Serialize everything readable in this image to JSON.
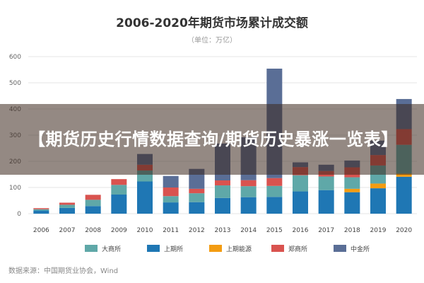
{
  "chart_data": {
    "type": "bar",
    "stacked": true,
    "title": "2006-2020年期货市场累计成交额",
    "subtitle": "（单位：万亿）",
    "ylim": [
      0,
      600
    ],
    "yticks": [
      0,
      100,
      200,
      300,
      400,
      500,
      600
    ],
    "categories": [
      "2006",
      "2007",
      "2008",
      "2009",
      "2010",
      "2011",
      "2012",
      "2013",
      "2014",
      "2015",
      "2016",
      "2017",
      "2018",
      "2019",
      "2020"
    ],
    "series": [
      {
        "name": "上期所",
        "color": "#1f77b4",
        "values": [
          12,
          22,
          29,
          73,
          123,
          43,
          44,
          60,
          63,
          64,
          85,
          90,
          82,
          97,
          141
        ]
      },
      {
        "name": "上期能源",
        "color": "#f39c12",
        "values": [
          0,
          0,
          0,
          0,
          0,
          0,
          0,
          0,
          0,
          0,
          0,
          0,
          13,
          18,
          12
        ]
      },
      {
        "name": "大商所",
        "color": "#5fa8a8",
        "values": [
          5,
          12,
          24,
          37,
          42,
          24,
          34,
          48,
          42,
          42,
          62,
          52,
          44,
          69,
          110
        ]
      },
      {
        "name": "郑商所",
        "color": "#d9534f",
        "values": [
          4,
          8,
          19,
          22,
          22,
          33,
          17,
          19,
          23,
          30,
          31,
          21,
          38,
          40,
          60
        ]
      },
      {
        "name": "中金所",
        "color": "#5a6e96",
        "values": [
          0,
          0,
          0,
          0,
          41,
          44,
          76,
          141,
          164,
          418,
          18,
          24,
          26,
          55,
          115
        ]
      }
    ],
    "legend_order": [
      "大商所",
      "上期所",
      "上期能源",
      "郑商所",
      "中金所"
    ],
    "legend_position": "bottom",
    "grid": true
  },
  "banner": {
    "text": "【期货历史行情数据查询/期货历史暴涨一览表】"
  },
  "source_note": "数据来源：中国期货业协会，Wind"
}
